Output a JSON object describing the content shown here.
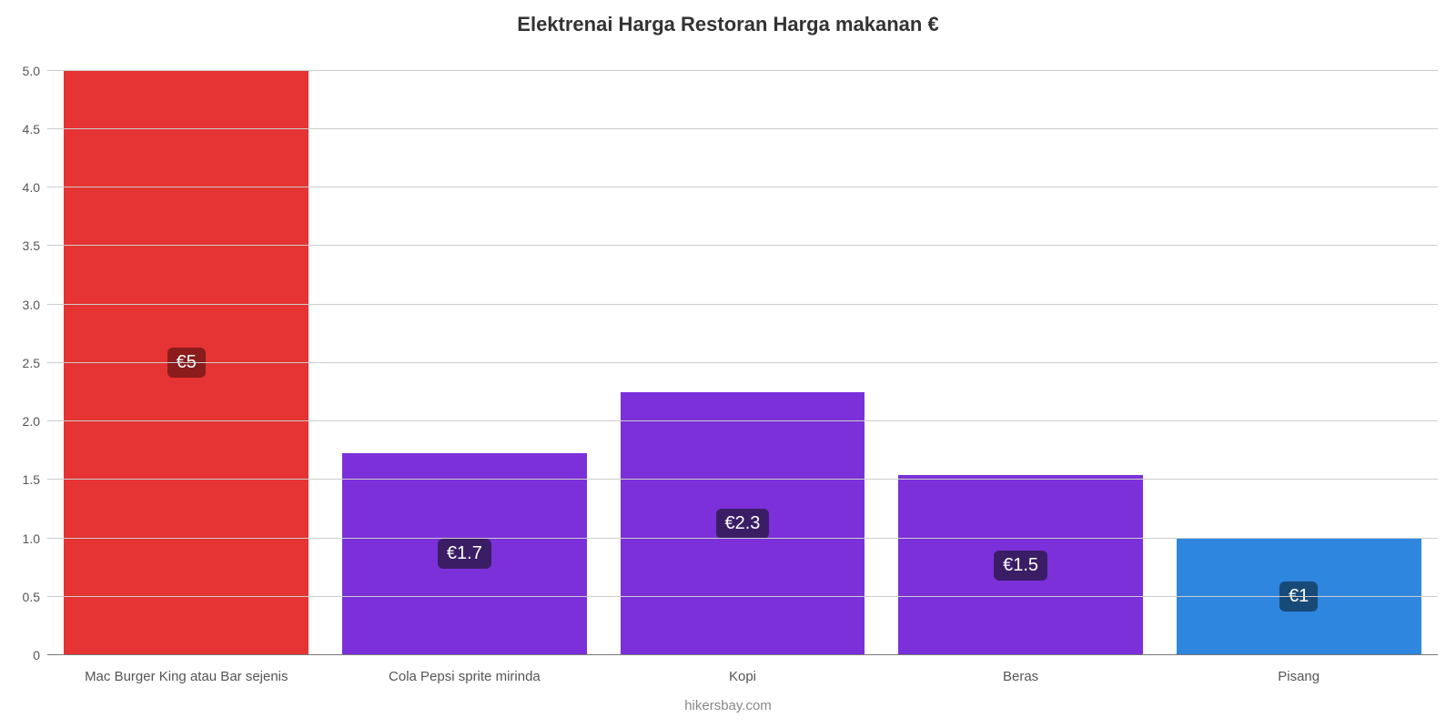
{
  "chart": {
    "type": "bar",
    "title": "Elektrenai Harga Restoran Harga makanan €",
    "title_fontsize": 22,
    "title_color": "#333333",
    "background_color": "#ffffff",
    "grid_color": "#cccccc",
    "axis_label_color": "#555555",
    "axis_fontsize": 14,
    "xlabel_fontsize": 15,
    "ylim": [
      0,
      5.2
    ],
    "yticks": [
      0,
      0.5,
      1.0,
      1.5,
      2.0,
      2.5,
      3.0,
      3.5,
      4.0,
      4.5,
      5.0
    ],
    "ytick_labels": [
      "0",
      "0.5",
      "1.0",
      "1.5",
      "2.0",
      "2.5",
      "3.0",
      "3.5",
      "4.0",
      "4.5",
      "5.0"
    ],
    "bar_width_pct": 88,
    "categories": [
      "Mac Burger King atau Bar sejenis",
      "Cola Pepsi sprite mirinda",
      "Kopi",
      "Beras",
      "Pisang"
    ],
    "values": [
      5.0,
      1.73,
      2.25,
      1.54,
      1.0
    ],
    "value_labels": [
      "€5",
      "€1.7",
      "€2.3",
      "€1.5",
      "€1"
    ],
    "bar_colors": [
      "#e63333",
      "#7b30d9",
      "#7b30d9",
      "#7b30d9",
      "#2e86de"
    ],
    "badge_bg_colors": [
      "#8a1c1c",
      "#3b1d66",
      "#3b1d66",
      "#3b1d66",
      "#184a78"
    ],
    "badge_text_color": "#ffffff",
    "badge_fontsize": 20,
    "footer": "hikersbay.com",
    "footer_color": "#888888",
    "footer_fontsize": 15
  }
}
